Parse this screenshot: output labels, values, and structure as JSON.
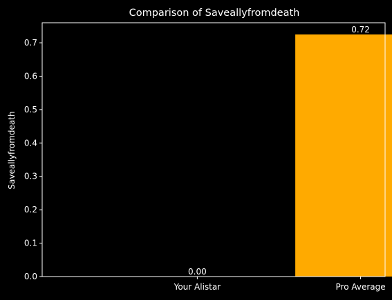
{
  "chart_data": {
    "type": "bar",
    "title": "Comparison of Saveallyfromdeath",
    "xlabel": "",
    "ylabel": "Saveallyfromdeath",
    "categories": [
      "Your Alistar",
      "Pro Average"
    ],
    "values": [
      0.0,
      0.725
    ],
    "data_labels": [
      "0.00",
      "0.72"
    ],
    "bar_colors": [
      "#1f77b4",
      "#ffaa00"
    ],
    "ylim": [
      0,
      0.76
    ],
    "yticks": [
      0.0,
      0.1,
      0.2,
      0.3,
      0.4,
      0.5,
      0.6,
      0.7
    ],
    "ytick_labels": [
      "0.0",
      "0.1",
      "0.2",
      "0.3",
      "0.4",
      "0.5",
      "0.6",
      "0.7"
    ],
    "grid": false,
    "background": "#000000",
    "axis_color": "#ffffff"
  }
}
